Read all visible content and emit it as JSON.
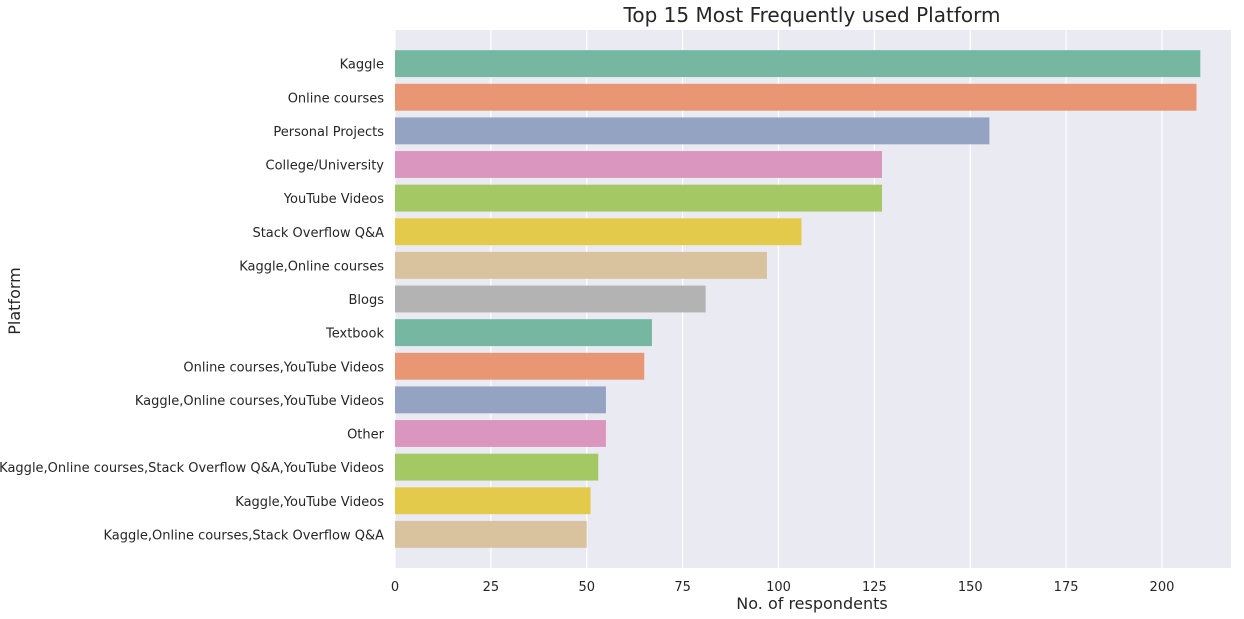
{
  "chart_data": {
    "type": "bar",
    "orientation": "horizontal",
    "title": "Top 15 Most Frequently used Platform",
    "xlabel": "No. of respondents",
    "ylabel": "Platform",
    "xlim": [
      0,
      218
    ],
    "xticks": [
      0,
      25,
      50,
      75,
      100,
      125,
      150,
      175,
      200
    ],
    "grid": true,
    "categories": [
      "Kaggle",
      "Online courses",
      "Personal Projects",
      "College/University",
      "YouTube Videos",
      "Stack Overflow Q&A",
      "Kaggle,Online courses",
      "Blogs",
      "Textbook",
      "Online courses,YouTube Videos",
      "Kaggle,Online courses,YouTube Videos",
      "Other",
      "Kaggle,Online courses,Stack Overflow Q&A,YouTube Videos",
      "Kaggle,YouTube Videos",
      "Kaggle,Online courses,Stack Overflow Q&A"
    ],
    "values": [
      210,
      209,
      155,
      127,
      127,
      106,
      97,
      81,
      67,
      65,
      55,
      55,
      53,
      51,
      50
    ],
    "colors": [
      "#76b7a2",
      "#e99675",
      "#95a3c3",
      "#db96c0",
      "#a3c864",
      "#e3ca4a",
      "#d9c39f",
      "#b3b3b3"
    ],
    "plot_background": "#eaeaf2",
    "grid_color": "#ffffff"
  }
}
